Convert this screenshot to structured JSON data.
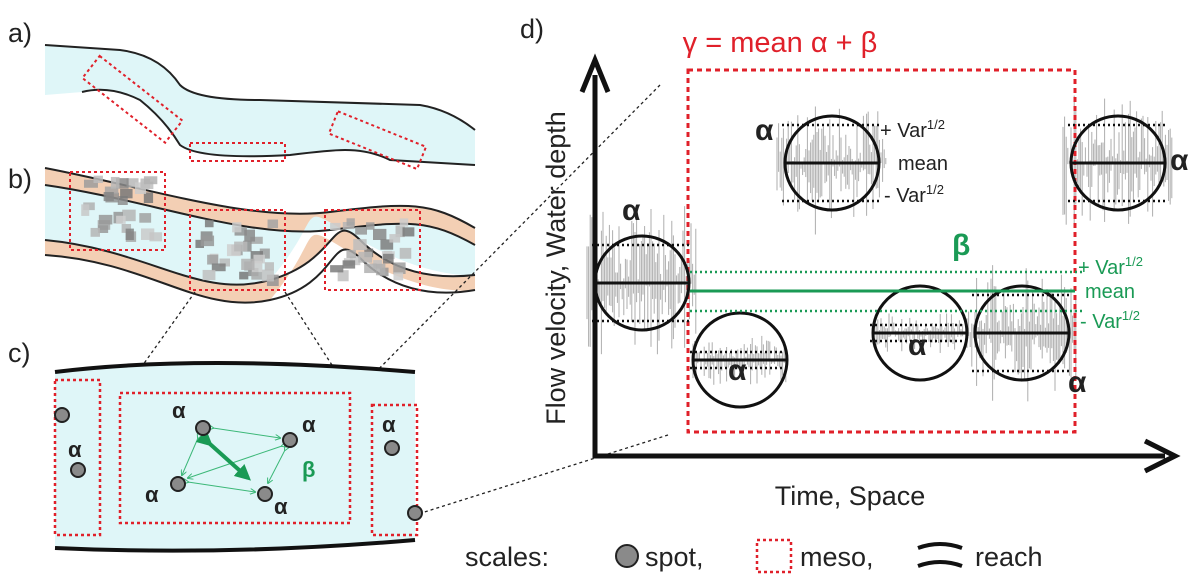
{
  "panels": {
    "a": {
      "label": "a)"
    },
    "b": {
      "label": "b)"
    },
    "c": {
      "label": "c)",
      "alpha": "α",
      "beta": "β"
    },
    "d": {
      "label": "d)",
      "title": "γ = mean α + β",
      "alpha": "α",
      "beta": "β",
      "plus_var": {
        "text": "+ Var",
        "sup": "1/2"
      },
      "mean": "mean",
      "minus_var": {
        "text": "- Var",
        "sup": "1/2"
      },
      "y_axis": "Flow velocity, Water depth",
      "x_axis": "Time, Space"
    }
  },
  "legend": {
    "title": "scales:",
    "items": [
      "spot,",
      "meso,",
      "reach"
    ]
  }
}
